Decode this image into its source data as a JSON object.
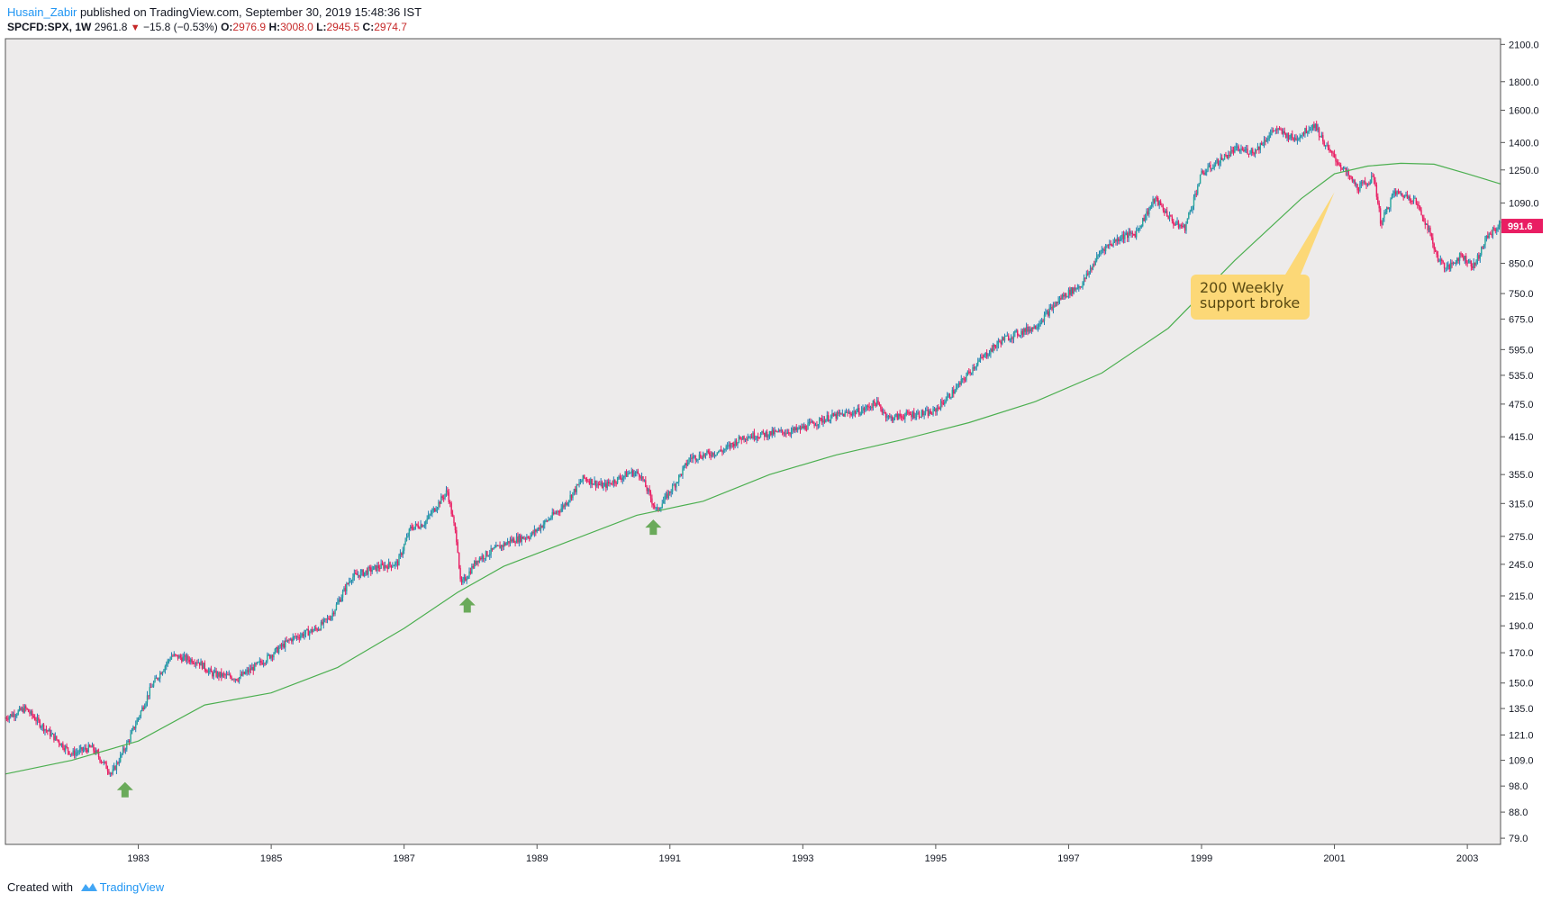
{
  "header": {
    "author": "Husain_Zabir",
    "published_text": " published on TradingView.com, September 30, 2019 15:48:36 IST"
  },
  "symbol_bar": {
    "symbol": "SPCFD:SPX, 1W",
    "last": "2961.8",
    "change": "−15.8 (−0.53%)",
    "o_label": "O:",
    "o_value": "2976.9",
    "h_label": "H:",
    "h_value": "3008.0",
    "l_label": "L:",
    "l_value": "2945.5",
    "c_label": "C:",
    "c_value": "2974.7"
  },
  "footer": {
    "created_with": "Created with",
    "brand": "TradingView"
  },
  "colors": {
    "up": "#26a69a",
    "up_wick": "#1f7fb4",
    "down": "#e91e63",
    "ma": "#4caf50",
    "plot_bg": "#edebeb",
    "annotation_bg": "#fcd877",
    "arrow": "#6aaa5a",
    "last_price_bg": "#e91e63"
  },
  "chart_data": {
    "type": "candlestick",
    "interval": "1W",
    "scale": "log",
    "x_tick_labels": [
      "1983",
      "1985",
      "1987",
      "1989",
      "1991",
      "1993",
      "1995",
      "1997",
      "1999",
      "2001",
      "2003"
    ],
    "y_tick_labels": [
      "2100.0",
      "1800.0",
      "1600.0",
      "1400.0",
      "1250.0",
      "1090.0",
      "991.6",
      "850.0",
      "750.0",
      "675.0",
      "595.0",
      "535.0",
      "475.0",
      "415.0",
      "355.0",
      "315.0",
      "275.0",
      "245.0",
      "215.0",
      "190.0",
      "170.0",
      "150.0",
      "135.0",
      "121.0",
      "109.0",
      "98.0",
      "88.0",
      "79.0"
    ],
    "ylim": [
      77,
      2150
    ],
    "xlim": [
      1981.0,
      2003.5
    ],
    "last_price": "991.6",
    "price_path": [
      [
        1981.0,
        130
      ],
      [
        1981.3,
        135
      ],
      [
        1981.6,
        124
      ],
      [
        1982.0,
        112
      ],
      [
        1982.3,
        115
      ],
      [
        1982.6,
        103
      ],
      [
        1982.85,
        118
      ],
      [
        1983.2,
        148
      ],
      [
        1983.5,
        168
      ],
      [
        1983.9,
        164
      ],
      [
        1984.1,
        156
      ],
      [
        1984.5,
        153
      ],
      [
        1984.9,
        165
      ],
      [
        1985.3,
        180
      ],
      [
        1985.7,
        188
      ],
      [
        1985.9,
        198
      ],
      [
        1986.2,
        232
      ],
      [
        1986.6,
        242
      ],
      [
        1986.9,
        246
      ],
      [
        1987.1,
        285
      ],
      [
        1987.3,
        290
      ],
      [
        1987.65,
        332
      ],
      [
        1987.8,
        268
      ],
      [
        1987.85,
        224
      ],
      [
        1988.1,
        250
      ],
      [
        1988.6,
        270
      ],
      [
        1988.9,
        276
      ],
      [
        1989.4,
        312
      ],
      [
        1989.7,
        350
      ],
      [
        1990.0,
        338
      ],
      [
        1990.4,
        358
      ],
      [
        1990.55,
        356
      ],
      [
        1990.8,
        305
      ],
      [
        1991.1,
        345
      ],
      [
        1991.3,
        380
      ],
      [
        1991.8,
        392
      ],
      [
        1992.1,
        415
      ],
      [
        1992.9,
        426
      ],
      [
        1993.4,
        450
      ],
      [
        1993.9,
        463
      ],
      [
        1994.1,
        478
      ],
      [
        1994.3,
        448
      ],
      [
        1994.6,
        455
      ],
      [
        1994.95,
        458
      ],
      [
        1995.3,
        505
      ],
      [
        1995.6,
        560
      ],
      [
        1996.0,
        620
      ],
      [
        1996.5,
        655
      ],
      [
        1996.9,
        740
      ],
      [
        1997.2,
        780
      ],
      [
        1997.5,
        900
      ],
      [
        1997.8,
        950
      ],
      [
        1998.0,
        960
      ],
      [
        1998.3,
        1110
      ],
      [
        1998.6,
        1000
      ],
      [
        1998.75,
        985
      ],
      [
        1999.0,
        1230
      ],
      [
        1999.5,
        1360
      ],
      [
        1999.8,
        1350
      ],
      [
        2000.1,
        1480
      ],
      [
        2000.4,
        1420
      ],
      [
        2000.7,
        1510
      ],
      [
        2000.9,
        1360
      ],
      [
        2001.1,
        1270
      ],
      [
        2001.35,
        1160
      ],
      [
        2001.6,
        1210
      ],
      [
        2001.7,
        1000
      ],
      [
        2001.9,
        1140
      ],
      [
        2002.2,
        1110
      ],
      [
        2002.4,
        990
      ],
      [
        2002.55,
        870
      ],
      [
        2002.7,
        830
      ],
      [
        2002.9,
        880
      ],
      [
        2003.1,
        840
      ],
      [
        2003.3,
        950
      ],
      [
        2003.5,
        1000
      ]
    ],
    "ma_path": [
      [
        1981.0,
        103
      ],
      [
        1982.0,
        109
      ],
      [
        1983.0,
        118
      ],
      [
        1984.0,
        137
      ],
      [
        1985.0,
        144
      ],
      [
        1986.0,
        160
      ],
      [
        1987.0,
        188
      ],
      [
        1987.8,
        218
      ],
      [
        1988.5,
        243
      ],
      [
        1989.5,
        270
      ],
      [
        1990.5,
        300
      ],
      [
        1991.5,
        318
      ],
      [
        1992.5,
        355
      ],
      [
        1993.5,
        385
      ],
      [
        1994.5,
        410
      ],
      [
        1995.5,
        440
      ],
      [
        1996.5,
        480
      ],
      [
        1997.5,
        540
      ],
      [
        1998.5,
        650
      ],
      [
        1999.5,
        860
      ],
      [
        2000.5,
        1110
      ],
      [
        2001.0,
        1230
      ],
      [
        2001.5,
        1270
      ],
      [
        2002.0,
        1285
      ],
      [
        2002.5,
        1280
      ],
      [
        2003.0,
        1230
      ],
      [
        2003.5,
        1180
      ]
    ],
    "annotations": [
      {
        "type": "callout",
        "lines": [
          "200 Weekly",
          "support broke"
        ],
        "anchor": [
          2001.0,
          1140
        ]
      }
    ],
    "markers": [
      {
        "type": "up-arrow",
        "x": 1982.8,
        "y": 96
      },
      {
        "type": "up-arrow",
        "x": 1987.95,
        "y": 206
      },
      {
        "type": "up-arrow",
        "x": 1990.75,
        "y": 284
      }
    ]
  }
}
